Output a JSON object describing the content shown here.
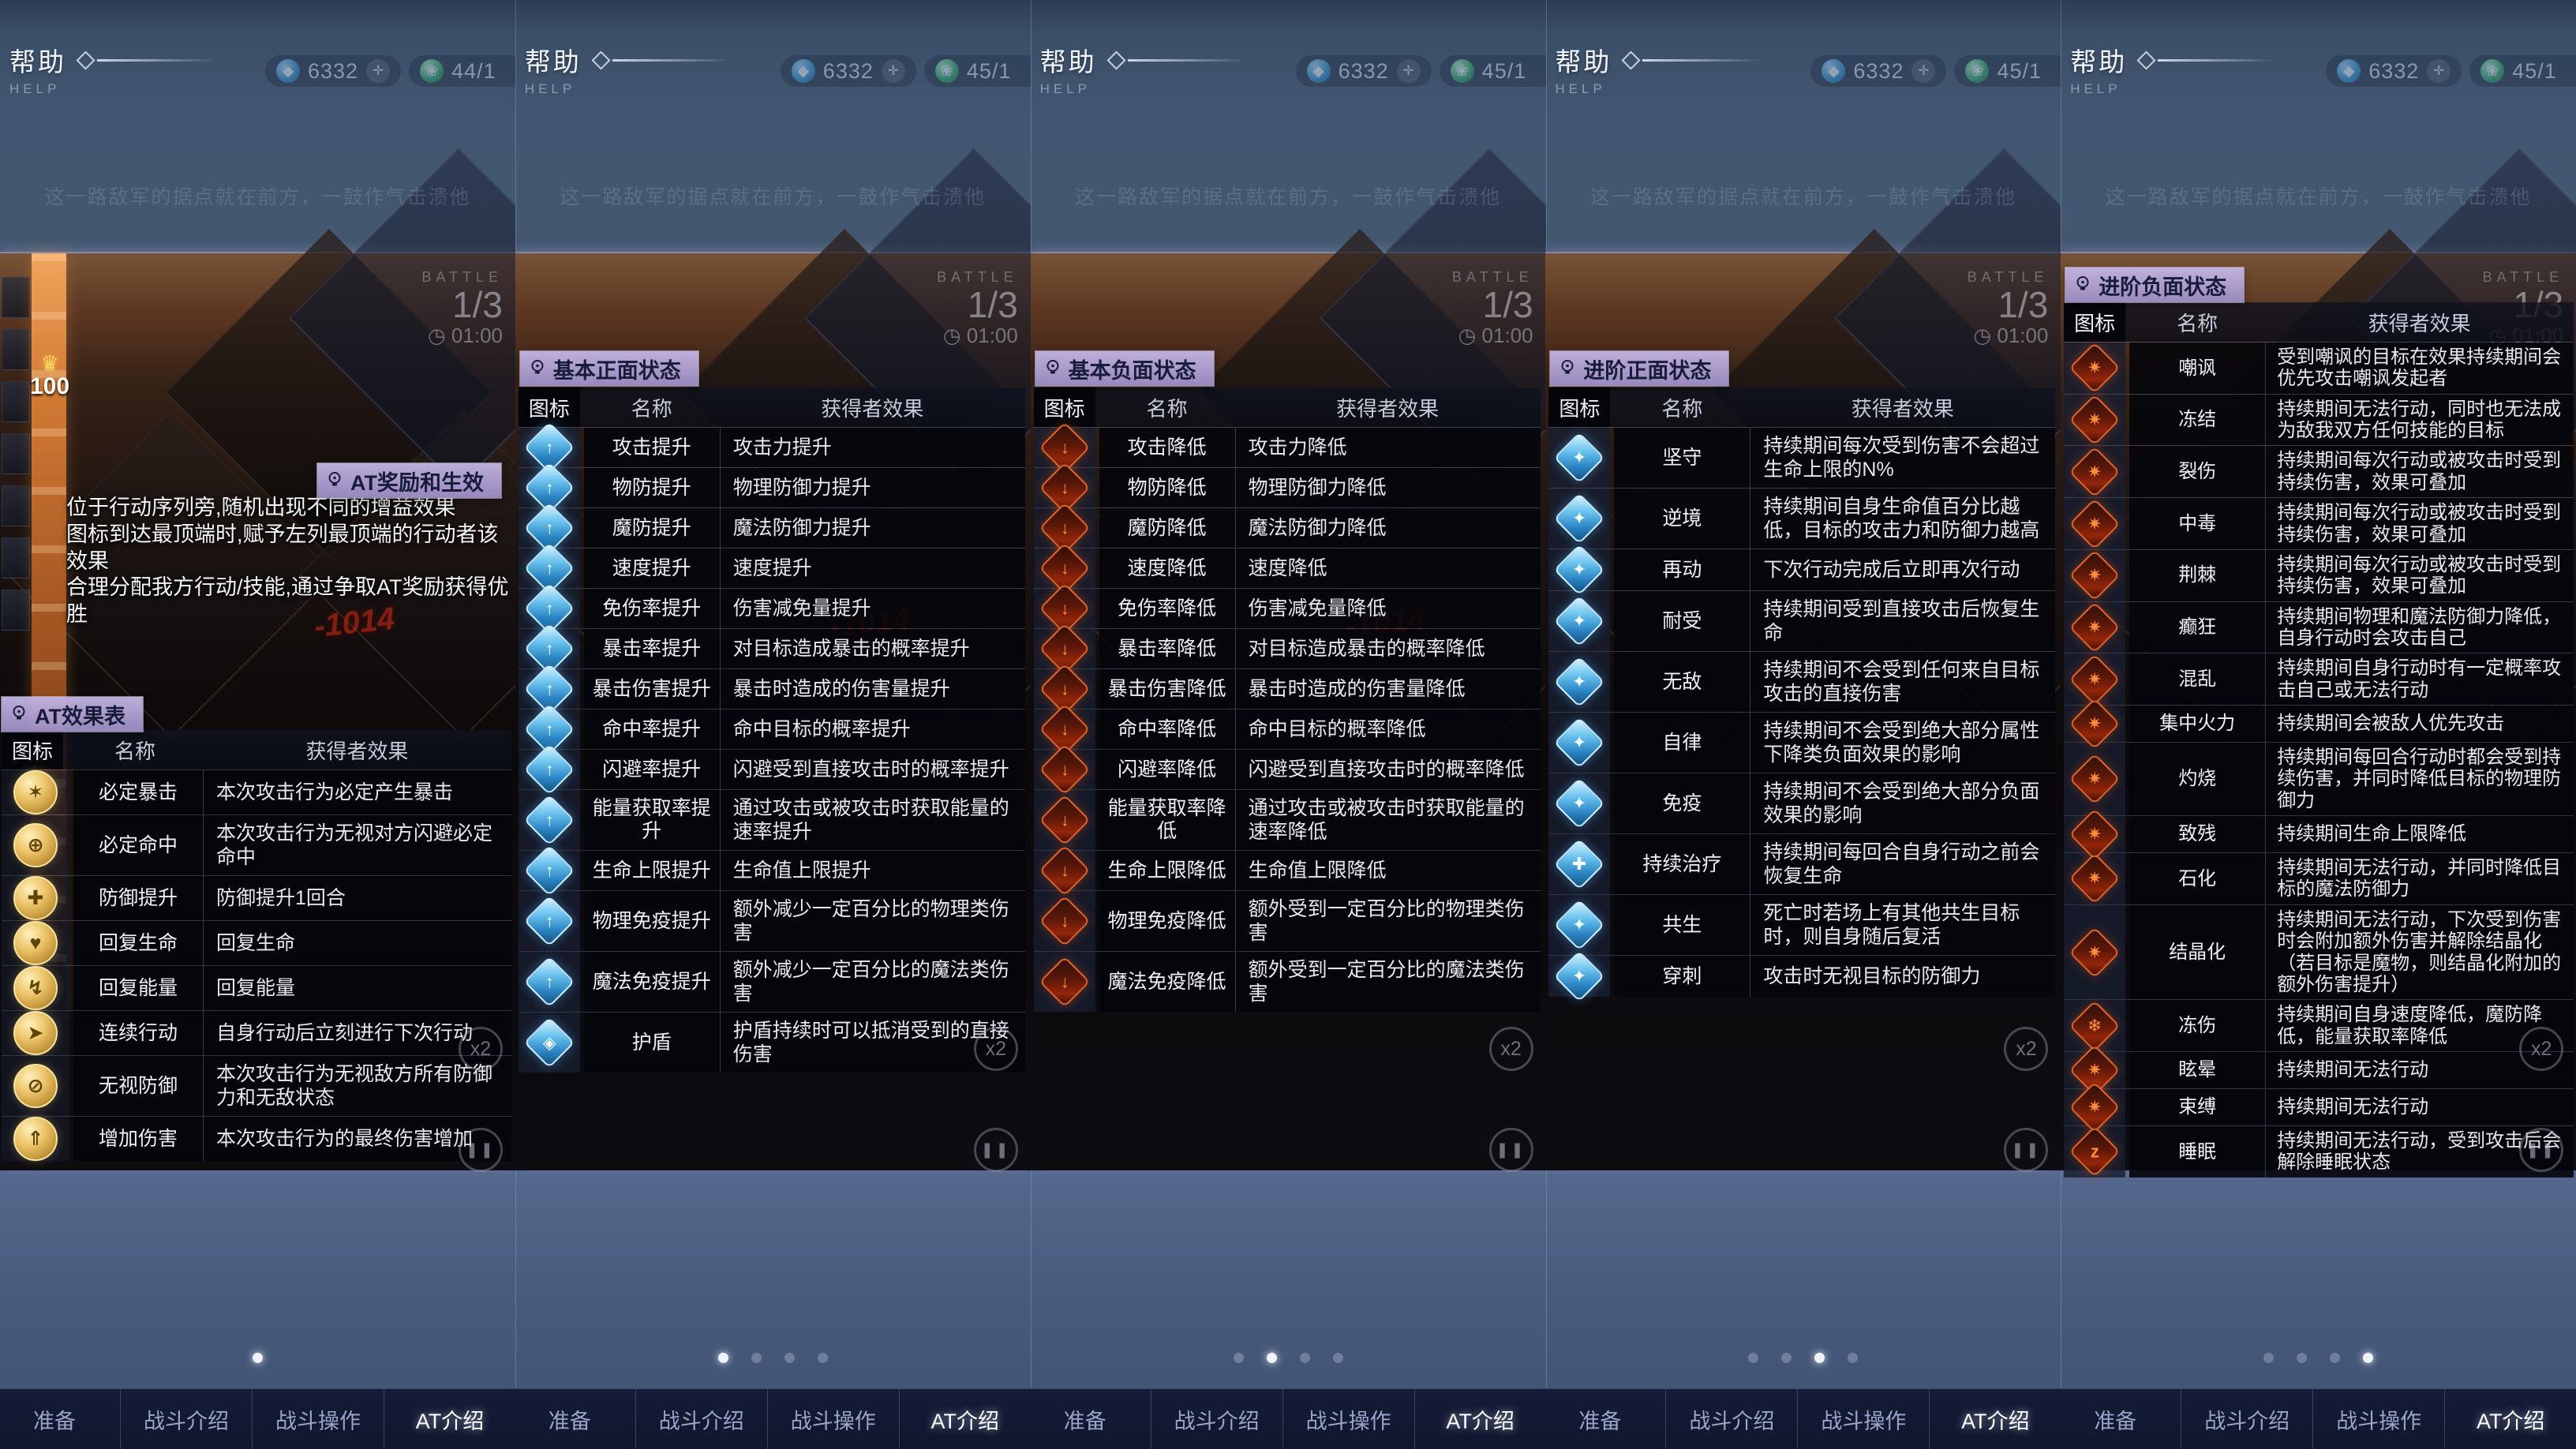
{
  "chrome": {
    "help_title": "帮助",
    "help_subtitle": "HELP",
    "caption": "这一路敌军的据点就在前方，一鼓作气击溃他",
    "gem_value": "6332",
    "gem_glyph": "◆",
    "plus_glyph": "✛",
    "stamina_glyph": "❀",
    "tabs": [
      "准备",
      "战斗介绍",
      "战斗操作",
      "AT介绍"
    ],
    "active_tab_index": 3,
    "accent_purple": "#b9a9da",
    "buff_blue": "#56b6e8",
    "debuff_red": "#e05a20",
    "gold": "#ecc46a"
  },
  "hud": {
    "battle_label": "BATTLE",
    "round": "1/3",
    "clock_glyph": "◷",
    "timer": "01:00",
    "speed": "x2",
    "pause_glyph": "❚❚"
  },
  "table_headers": {
    "icon": "图标",
    "name": "名称",
    "effect": "获得者效果"
  },
  "panels": [
    {
      "id": "at-intro",
      "labels": [
        "AT奖励和生效",
        "AT效果表"
      ],
      "description": [
        "位于行动序列旁,随机出现不同的增益效果",
        "图标到达最顶端时,赋予左列最顶端的行动者该效果",
        "合理分配我方行动/技能,通过争取AT奖励获得优胜"
      ],
      "at_marker": "100",
      "at_crown": "♛",
      "damage_number": "-1014",
      "stamina": "44/1",
      "icon_style": "gold",
      "dots": {
        "count": 1,
        "active": 0
      },
      "rows": [
        {
          "icon": "guaranteed-crit-icon",
          "glyph": "✶",
          "name": "必定暴击",
          "effect": "本次攻击行为必定产生暴击"
        },
        {
          "icon": "guaranteed-hit-icon",
          "glyph": "⊕",
          "name": "必定命中",
          "effect": "本次攻击行为无视对方闪避必定命中"
        },
        {
          "icon": "defense-up-icon",
          "glyph": "✚",
          "name": "防御提升",
          "effect": "防御提升1回合"
        },
        {
          "icon": "restore-hp-icon",
          "glyph": "♥",
          "name": "回复生命",
          "effect": "回复生命"
        },
        {
          "icon": "restore-energy-icon",
          "glyph": "↯",
          "name": "回复能量",
          "effect": "回复能量"
        },
        {
          "icon": "extra-action-icon",
          "glyph": "➤",
          "name": "连续行动",
          "effect": "自身行动后立刻进行下次行动"
        },
        {
          "icon": "ignore-defense-icon",
          "glyph": "⊘",
          "name": "无视防御",
          "effect": "本次攻击行为无视敌方所有防御力和无敌状态"
        },
        {
          "icon": "damage-up-icon",
          "glyph": "⇑",
          "name": "增加伤害",
          "effect": "本次攻击行为的最终伤害增加"
        }
      ]
    },
    {
      "id": "basic-positive",
      "labels": [
        "基本正面状态"
      ],
      "damage_number": "-1014",
      "stamina": "45/1",
      "icon_style": "blue",
      "dots": {
        "count": 4,
        "active": 0
      },
      "rows": [
        {
          "icon": "atk-up-icon",
          "glyph": "↑",
          "name": "攻击提升",
          "effect": "攻击力提升"
        },
        {
          "icon": "pdef-up-icon",
          "glyph": "↑",
          "name": "物防提升",
          "effect": "物理防御力提升"
        },
        {
          "icon": "mdef-up-icon",
          "glyph": "↑",
          "name": "魔防提升",
          "effect": "魔法防御力提升"
        },
        {
          "icon": "speed-up-icon",
          "glyph": "↑",
          "name": "速度提升",
          "effect": "速度提升"
        },
        {
          "icon": "dmg-reduction-up-icon",
          "glyph": "↑",
          "name": "免伤率提升",
          "effect": "伤害减免量提升"
        },
        {
          "icon": "crit-rate-up-icon",
          "glyph": "↑",
          "name": "暴击率提升",
          "effect": "对目标造成暴击的概率提升"
        },
        {
          "icon": "crit-dmg-up-icon",
          "glyph": "↑",
          "name": "暴击伤害提升",
          "effect": "暴击时造成的伤害量提升"
        },
        {
          "icon": "hit-rate-up-icon",
          "glyph": "↑",
          "name": "命中率提升",
          "effect": "命中目标的概率提升"
        },
        {
          "icon": "dodge-rate-up-icon",
          "glyph": "↑",
          "name": "闪避率提升",
          "effect": "闪避受到直接攻击时的概率提升"
        },
        {
          "icon": "energy-gain-up-icon",
          "glyph": "↑",
          "name": "能量获取率提升",
          "effect": "通过攻击或被攻击时获取能量的速率提升"
        },
        {
          "icon": "max-hp-up-icon",
          "glyph": "↑",
          "name": "生命上限提升",
          "effect": "生命值上限提升"
        },
        {
          "icon": "phys-immunity-up-icon",
          "glyph": "↑",
          "name": "物理免疫提升",
          "effect": "额外减少一定百分比的物理类伤害"
        },
        {
          "icon": "magic-immunity-up-icon",
          "glyph": "↑",
          "name": "魔法免疫提升",
          "effect": "额外减少一定百分比的魔法类伤害"
        },
        {
          "icon": "shield-icon",
          "glyph": "◈",
          "name": "护盾",
          "effect": "护盾持续时可以抵消受到的直接伤害"
        }
      ]
    },
    {
      "id": "basic-negative",
      "labels": [
        "基本负面状态"
      ],
      "damage_number": "-1014",
      "stamina": "45/1",
      "icon_style": "red",
      "dots": {
        "count": 4,
        "active": 1
      },
      "rows": [
        {
          "icon": "atk-down-icon",
          "glyph": "↓",
          "name": "攻击降低",
          "effect": "攻击力降低"
        },
        {
          "icon": "pdef-down-icon",
          "glyph": "↓",
          "name": "物防降低",
          "effect": "物理防御力降低"
        },
        {
          "icon": "mdef-down-icon",
          "glyph": "↓",
          "name": "魔防降低",
          "effect": "魔法防御力降低"
        },
        {
          "icon": "speed-down-icon",
          "glyph": "↓",
          "name": "速度降低",
          "effect": "速度降低"
        },
        {
          "icon": "dmg-reduction-down-icon",
          "glyph": "↓",
          "name": "免伤率降低",
          "effect": "伤害减免量降低"
        },
        {
          "icon": "crit-rate-down-icon",
          "glyph": "↓",
          "name": "暴击率降低",
          "effect": "对目标造成暴击的概率降低"
        },
        {
          "icon": "crit-dmg-down-icon",
          "glyph": "↓",
          "name": "暴击伤害降低",
          "effect": "暴击时造成的伤害量降低"
        },
        {
          "icon": "hit-rate-down-icon",
          "glyph": "↓",
          "name": "命中率降低",
          "effect": "命中目标的概率降低"
        },
        {
          "icon": "dodge-rate-down-icon",
          "glyph": "↓",
          "name": "闪避率降低",
          "effect": "闪避受到直接攻击时的概率降低"
        },
        {
          "icon": "energy-gain-down-icon",
          "glyph": "↓",
          "name": "能量获取率降低",
          "effect": "通过攻击或被攻击时获取能量的速率降低"
        },
        {
          "icon": "max-hp-down-icon",
          "glyph": "↓",
          "name": "生命上限降低",
          "effect": "生命值上限降低"
        },
        {
          "icon": "phys-immunity-down-icon",
          "glyph": "↓",
          "name": "物理免疫降低",
          "effect": "额外受到一定百分比的物理类伤害"
        },
        {
          "icon": "magic-immunity-down-icon",
          "glyph": "↓",
          "name": "魔法免疫降低",
          "effect": "额外受到一定百分比的魔法类伤害"
        }
      ]
    },
    {
      "id": "adv-positive",
      "labels": [
        "进阶正面状态"
      ],
      "stamina": "45/1",
      "icon_style": "blue",
      "dots": {
        "count": 4,
        "active": 2
      },
      "rows": [
        {
          "icon": "steadfast-icon",
          "glyph": "✦",
          "name": "坚守",
          "effect": "持续期间每次受到伤害不会超过生命上限的N%"
        },
        {
          "icon": "adversity-icon",
          "glyph": "✦",
          "name": "逆境",
          "effect": "持续期间自身生命值百分比越低，目标的攻击力和防御力越高"
        },
        {
          "icon": "re-action-icon",
          "glyph": "✦",
          "name": "再动",
          "effect": "下次行动完成后立即再次行动"
        },
        {
          "icon": "endurance-icon",
          "glyph": "✦",
          "name": "耐受",
          "effect": "持续期间受到直接攻击后恢复生命"
        },
        {
          "icon": "invincible-icon",
          "glyph": "✦",
          "name": "无敌",
          "effect": "持续期间不会受到任何来自目标攻击的直接伤害"
        },
        {
          "icon": "self-discipline-icon",
          "glyph": "✦",
          "name": "自律",
          "effect": "持续期间不会受到绝大部分属性下降类负面效果的影响"
        },
        {
          "icon": "immunity-icon",
          "glyph": "✦",
          "name": "免疫",
          "effect": "持续期间不会受到绝大部分负面效果的影响"
        },
        {
          "icon": "regen-icon",
          "glyph": "✚",
          "name": "持续治疗",
          "effect": "持续期间每回合自身行动之前会恢复生命"
        },
        {
          "icon": "symbiosis-icon",
          "glyph": "✦",
          "name": "共生",
          "effect": "死亡时若场上有其他共生目标时，则自身随后复活"
        },
        {
          "icon": "pierce-icon",
          "glyph": "✦",
          "name": "穿刺",
          "effect": "攻击时无视目标的防御力"
        }
      ]
    },
    {
      "id": "adv-negative",
      "labels": [
        "进阶负面状态"
      ],
      "stamina": "45/1",
      "icon_style": "red",
      "dots": {
        "count": 4,
        "active": 3
      },
      "rows": [
        {
          "icon": "taunt-icon",
          "glyph": "✷",
          "name": "嘲讽",
          "effect": "受到嘲讽的目标在效果持续期间会优先攻击嘲讽发起者"
        },
        {
          "icon": "freeze-icon",
          "glyph": "✷",
          "name": "冻结",
          "effect": "持续期间无法行动，同时也无法成为敌我双方任何技能的目标"
        },
        {
          "icon": "laceration-icon",
          "glyph": "✷",
          "name": "裂伤",
          "effect": "持续期间每次行动或被攻击时受到持续伤害，效果可叠加"
        },
        {
          "icon": "poison-icon",
          "glyph": "✷",
          "name": "中毒",
          "effect": "持续期间每次行动或被攻击时受到持续伤害，效果可叠加"
        },
        {
          "icon": "thorns-icon",
          "glyph": "✷",
          "name": "荆棘",
          "effect": "持续期间每次行动或被攻击时受到持续伤害，效果可叠加"
        },
        {
          "icon": "frenzy-icon",
          "glyph": "✷",
          "name": "癫狂",
          "effect": "持续期间物理和魔法防御力降低，自身行动时会攻击自己"
        },
        {
          "icon": "confusion-icon",
          "glyph": "✷",
          "name": "混乱",
          "effect": "持续期间自身行动时有一定概率攻击自己或无法行动"
        },
        {
          "icon": "focus-fire-icon",
          "glyph": "✷",
          "name": "集中火力",
          "effect": "持续期间会被敌人优先攻击"
        },
        {
          "icon": "burn-icon",
          "glyph": "✷",
          "name": "灼烧",
          "effect": "持续期间每回合行动时都会受到持续伤害，并同时降低目标的物理防御力"
        },
        {
          "icon": "cripple-icon",
          "glyph": "✷",
          "name": "致残",
          "effect": "持续期间生命上限降低"
        },
        {
          "icon": "petrify-icon",
          "glyph": "✷",
          "name": "石化",
          "effect": "持续期间无法行动，并同时降低目标的魔法防御力"
        },
        {
          "icon": "crystallize-icon",
          "glyph": "✷",
          "name": "结晶化",
          "effect": "持续期间无法行动，下次受到伤害时会附加额外伤害并解除结晶化（若目标是魔物，则结晶化附加的额外伤害提升）"
        },
        {
          "icon": "frostbite-icon",
          "glyph": "❄",
          "name": "冻伤",
          "effect": "持续期间自身速度降低，魔防降低，能量获取率降低"
        },
        {
          "icon": "dizzy-icon",
          "glyph": "✷",
          "name": "眩晕",
          "effect": "持续期间无法行动"
        },
        {
          "icon": "bind-icon",
          "glyph": "✷",
          "name": "束缚",
          "effect": "持续期间无法行动"
        },
        {
          "icon": "sleep-icon",
          "glyph": "z",
          "name": "睡眠",
          "effect": "持续期间无法行动，受到攻击后会解除睡眠状态"
        }
      ]
    }
  ]
}
